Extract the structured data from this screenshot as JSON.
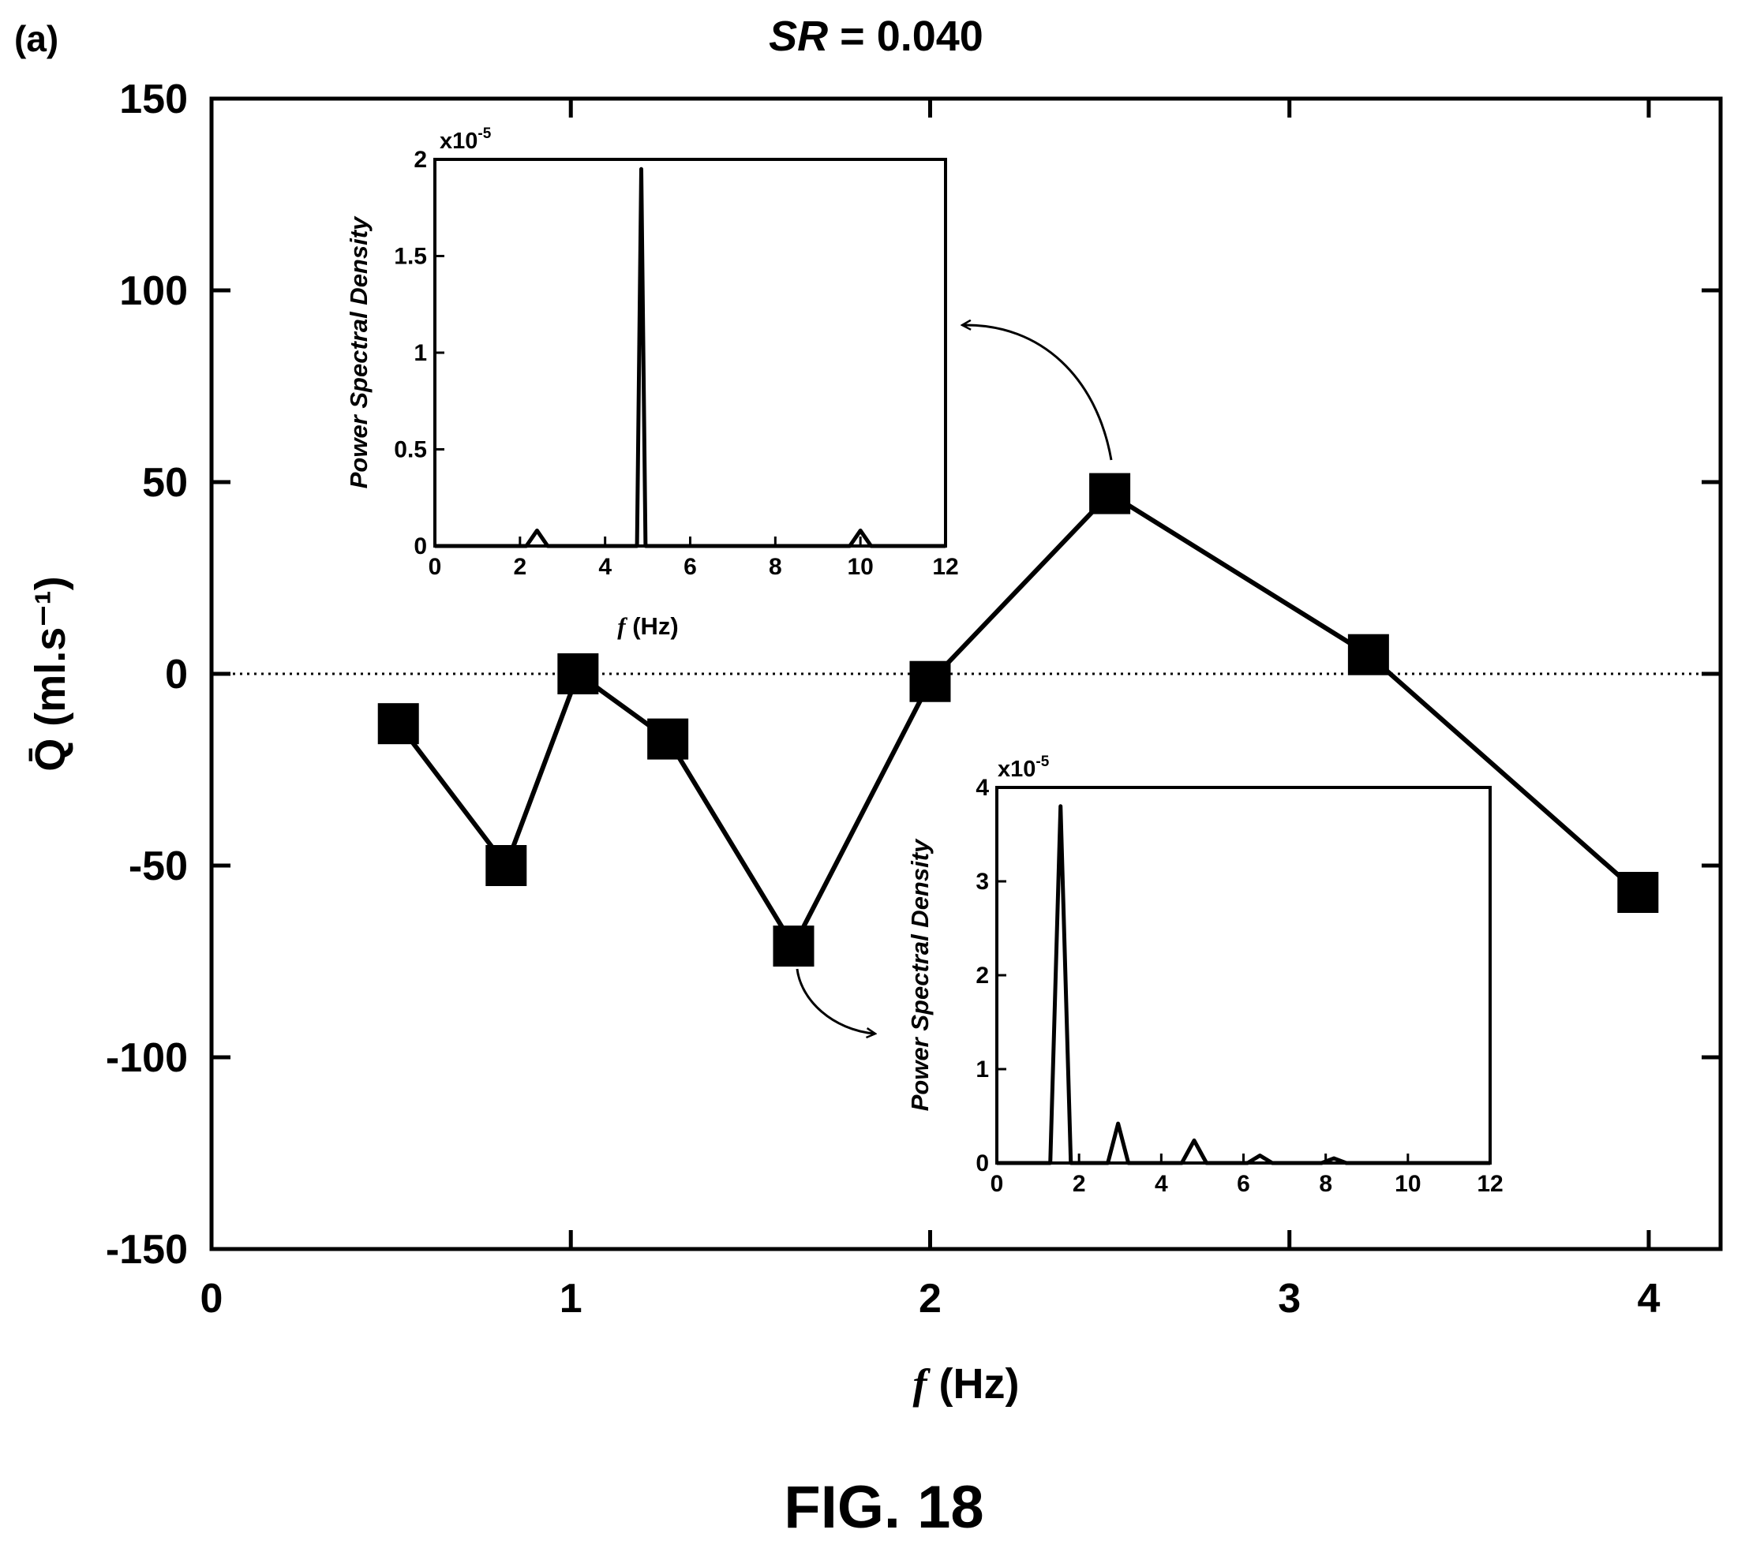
{
  "figure": {
    "panel_label": "(a)",
    "caption": "FIG. 18"
  },
  "chart_data": [
    {
      "type": "line",
      "title_var": "SR",
      "title_rest": " = 0.040",
      "xlabel_var": "f",
      "xlabel_rest": " (Hz)",
      "ylabel": "Q̄ (ml.s⁻¹)",
      "xlim": [
        0,
        4.2
      ],
      "ylim": [
        -150,
        150
      ],
      "xticks": [
        0,
        1,
        2,
        3,
        4
      ],
      "yticks": [
        -150,
        -100,
        -50,
        0,
        50,
        100,
        150
      ],
      "zero_reference_line": true,
      "marker": "square",
      "series": [
        {
          "x": [
            0.52,
            0.82,
            1.02,
            1.27,
            1.62,
            2.0,
            2.5,
            3.22,
            3.97
          ],
          "y": [
            -13,
            -50,
            0,
            -17,
            -71,
            -2,
            47,
            5,
            -57
          ]
        }
      ]
    },
    {
      "type": "line",
      "inset_of_point": {
        "x": 2.5,
        "y": 47
      },
      "xlabel_var": "f",
      "xlabel_rest": " (Hz)",
      "ylabel": "Power Spectral Density",
      "scale_label": "x10",
      "scale_exp": "-5",
      "xlim": [
        0,
        12
      ],
      "ylim": [
        0,
        2
      ],
      "xticks": [
        0,
        2,
        4,
        6,
        8,
        10,
        12
      ],
      "yticks": [
        0,
        0.5,
        1,
        1.5,
        2
      ],
      "series": [
        {
          "x": [
            0,
            2.15,
            2.4,
            2.65,
            4.6,
            4.75,
            4.85,
            4.95,
            5.1,
            9.75,
            10.0,
            10.25,
            12
          ],
          "y": [
            0,
            0,
            0.08,
            0,
            0,
            0,
            1.95,
            0,
            0,
            0,
            0.08,
            0,
            0
          ]
        }
      ]
    },
    {
      "type": "line",
      "inset_of_point": {
        "x": 1.62,
        "y": -71
      },
      "xlabel_var": "",
      "xlabel_rest": "",
      "ylabel": "Power Spectral Density",
      "scale_label": "x10",
      "scale_exp": "-5",
      "xlim": [
        0,
        12
      ],
      "ylim": [
        0,
        4
      ],
      "xticks": [
        0,
        2,
        4,
        6,
        8,
        10,
        12
      ],
      "yticks": [
        0,
        1,
        2,
        3,
        4
      ],
      "series": [
        {
          "x": [
            0,
            1.3,
            1.55,
            1.8,
            2.7,
            2.95,
            3.2,
            4.5,
            4.8,
            5.1,
            6.1,
            6.4,
            6.7,
            7.9,
            8.2,
            8.5,
            12
          ],
          "y": [
            0,
            0,
            3.8,
            0,
            0,
            0.42,
            0,
            0,
            0.24,
            0,
            0,
            0.08,
            0,
            0,
            0.05,
            0,
            0
          ]
        }
      ]
    }
  ]
}
